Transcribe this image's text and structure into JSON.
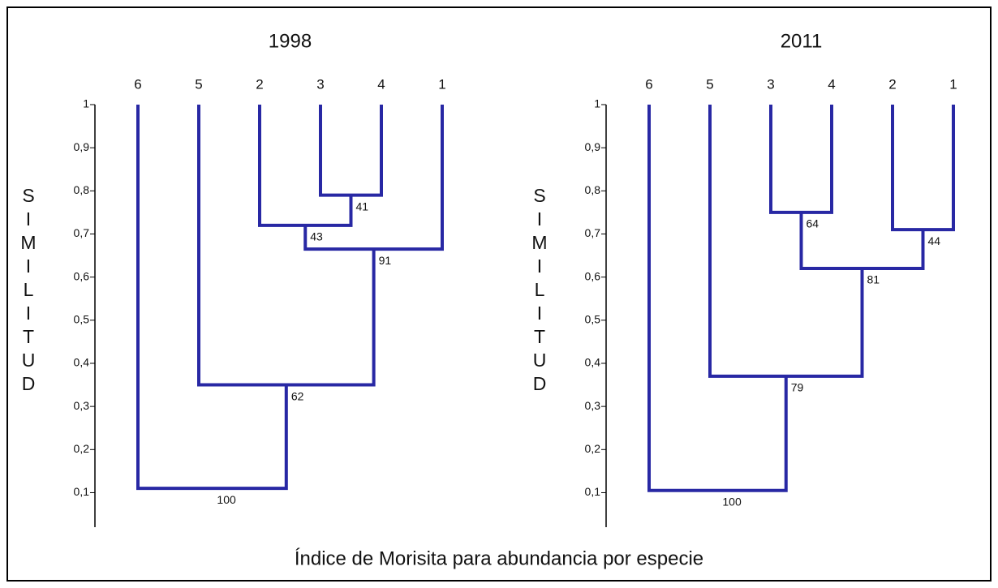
{
  "chart_data": [
    {
      "type": "dendrogram",
      "title": "1998",
      "y_label": "SIMILITUD",
      "color": "#2828a4",
      "ylim": [
        0.02,
        1
      ],
      "yticks": [
        1,
        {
          "value": 0.9,
          "label": "0,9"
        },
        {
          "value": 0.8,
          "label": "0,8"
        },
        {
          "value": 0.7,
          "label": "0,7"
        },
        {
          "value": 0.6,
          "label": "0,6"
        },
        {
          "value": 0.5,
          "label": "0,5"
        },
        {
          "value": 0.4,
          "label": "0,4"
        },
        {
          "value": 0.3,
          "label": "0,3"
        },
        {
          "value": 0.2,
          "label": "0,2"
        },
        {
          "value": 0.1,
          "label": "0,1"
        }
      ],
      "leaves": [
        "6",
        "5",
        "2",
        "3",
        "4",
        "1"
      ],
      "merges": [
        {
          "children": [
            3,
            4
          ],
          "height": 0.79,
          "label": 41
        },
        {
          "children": [
            2,
            6
          ],
          "height": 0.72,
          "label": 43
        },
        {
          "children": [
            7,
            5
          ],
          "height": 0.665,
          "label": 91
        },
        {
          "children": [
            1,
            8
          ],
          "height": 0.35,
          "label": 62
        },
        {
          "children": [
            0,
            9
          ],
          "height": 0.11,
          "label": 100
        }
      ]
    },
    {
      "type": "dendrogram",
      "title": "2011",
      "y_label": "SIMILITUD",
      "color": "#2828a4",
      "ylim": [
        0.02,
        1
      ],
      "yticks": [
        1,
        {
          "value": 0.9,
          "label": "0,9"
        },
        {
          "value": 0.8,
          "label": "0,8"
        },
        {
          "value": 0.7,
          "label": "0,7"
        },
        {
          "value": 0.6,
          "label": "0,6"
        },
        {
          "value": 0.5,
          "label": "0,5"
        },
        {
          "value": 0.4,
          "label": "0,4"
        },
        {
          "value": 0.3,
          "label": "0,3"
        },
        {
          "value": 0.2,
          "label": "0,2"
        },
        {
          "value": 0.1,
          "label": "0,1"
        }
      ],
      "leaves": [
        "6",
        "5",
        "3",
        "4",
        "2",
        "1"
      ],
      "merges": [
        {
          "children": [
            2,
            3
          ],
          "height": 0.75,
          "label": 64
        },
        {
          "children": [
            4,
            5
          ],
          "height": 0.71,
          "label": 44
        },
        {
          "children": [
            6,
            7
          ],
          "height": 0.62,
          "label": 81
        },
        {
          "children": [
            1,
            8
          ],
          "height": 0.37,
          "label": 79
        },
        {
          "children": [
            0,
            9
          ],
          "height": 0.105,
          "label": 100
        }
      ]
    }
  ],
  "caption": "Índice de Morisita para abundancia por especie"
}
